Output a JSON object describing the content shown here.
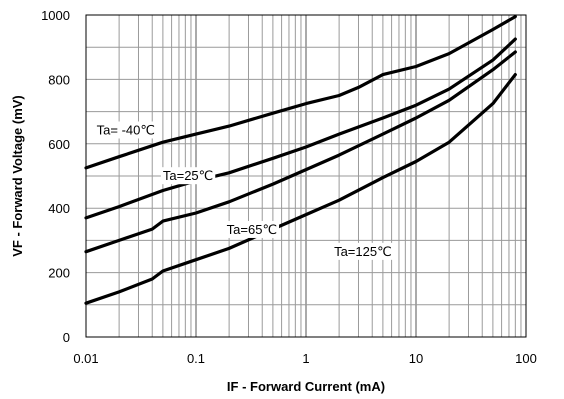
{
  "chart_data": {
    "type": "line",
    "title": "",
    "xlabel": "IF - Forward Current (mA)",
    "ylabel": "VF - Forward Voltage (mV)",
    "x_scale": "log",
    "xlim": [
      0.01,
      100
    ],
    "ylim": [
      0,
      1000
    ],
    "x_ticks": [
      "0.01",
      "0.1",
      "1",
      "10",
      "100"
    ],
    "y_ticks": [
      "0",
      "200",
      "400",
      "600",
      "800",
      "1000"
    ],
    "grid": true,
    "legend": "none",
    "series": [
      {
        "name": "Ta= -40℃",
        "x": [
          0.01,
          0.02,
          0.05,
          0.1,
          0.2,
          0.5,
          1,
          2,
          3,
          5,
          10,
          20,
          50,
          80
        ],
        "y": [
          525,
          560,
          605,
          630,
          655,
          695,
          725,
          750,
          775,
          815,
          840,
          880,
          955,
          995
        ]
      },
      {
        "name": "Ta=25℃",
        "x": [
          0.01,
          0.02,
          0.05,
          0.1,
          0.2,
          0.5,
          1,
          2,
          5,
          10,
          20,
          50,
          80
        ],
        "y": [
          370,
          405,
          455,
          485,
          510,
          555,
          590,
          630,
          680,
          720,
          770,
          860,
          925
        ]
      },
      {
        "name": "Ta=65℃",
        "x": [
          0.01,
          0.02,
          0.04,
          0.05,
          0.1,
          0.2,
          0.5,
          1,
          2,
          5,
          10,
          20,
          50,
          80
        ],
        "y": [
          265,
          300,
          335,
          360,
          385,
          420,
          475,
          520,
          565,
          630,
          680,
          735,
          830,
          885
        ]
      },
      {
        "name": "Ta=125℃",
        "x": [
          0.01,
          0.02,
          0.04,
          0.05,
          0.1,
          0.2,
          0.5,
          1,
          2,
          5,
          10,
          20,
          50,
          80
        ],
        "y": [
          105,
          140,
          180,
          205,
          240,
          275,
          335,
          380,
          425,
          495,
          545,
          605,
          725,
          815
        ]
      }
    ]
  }
}
